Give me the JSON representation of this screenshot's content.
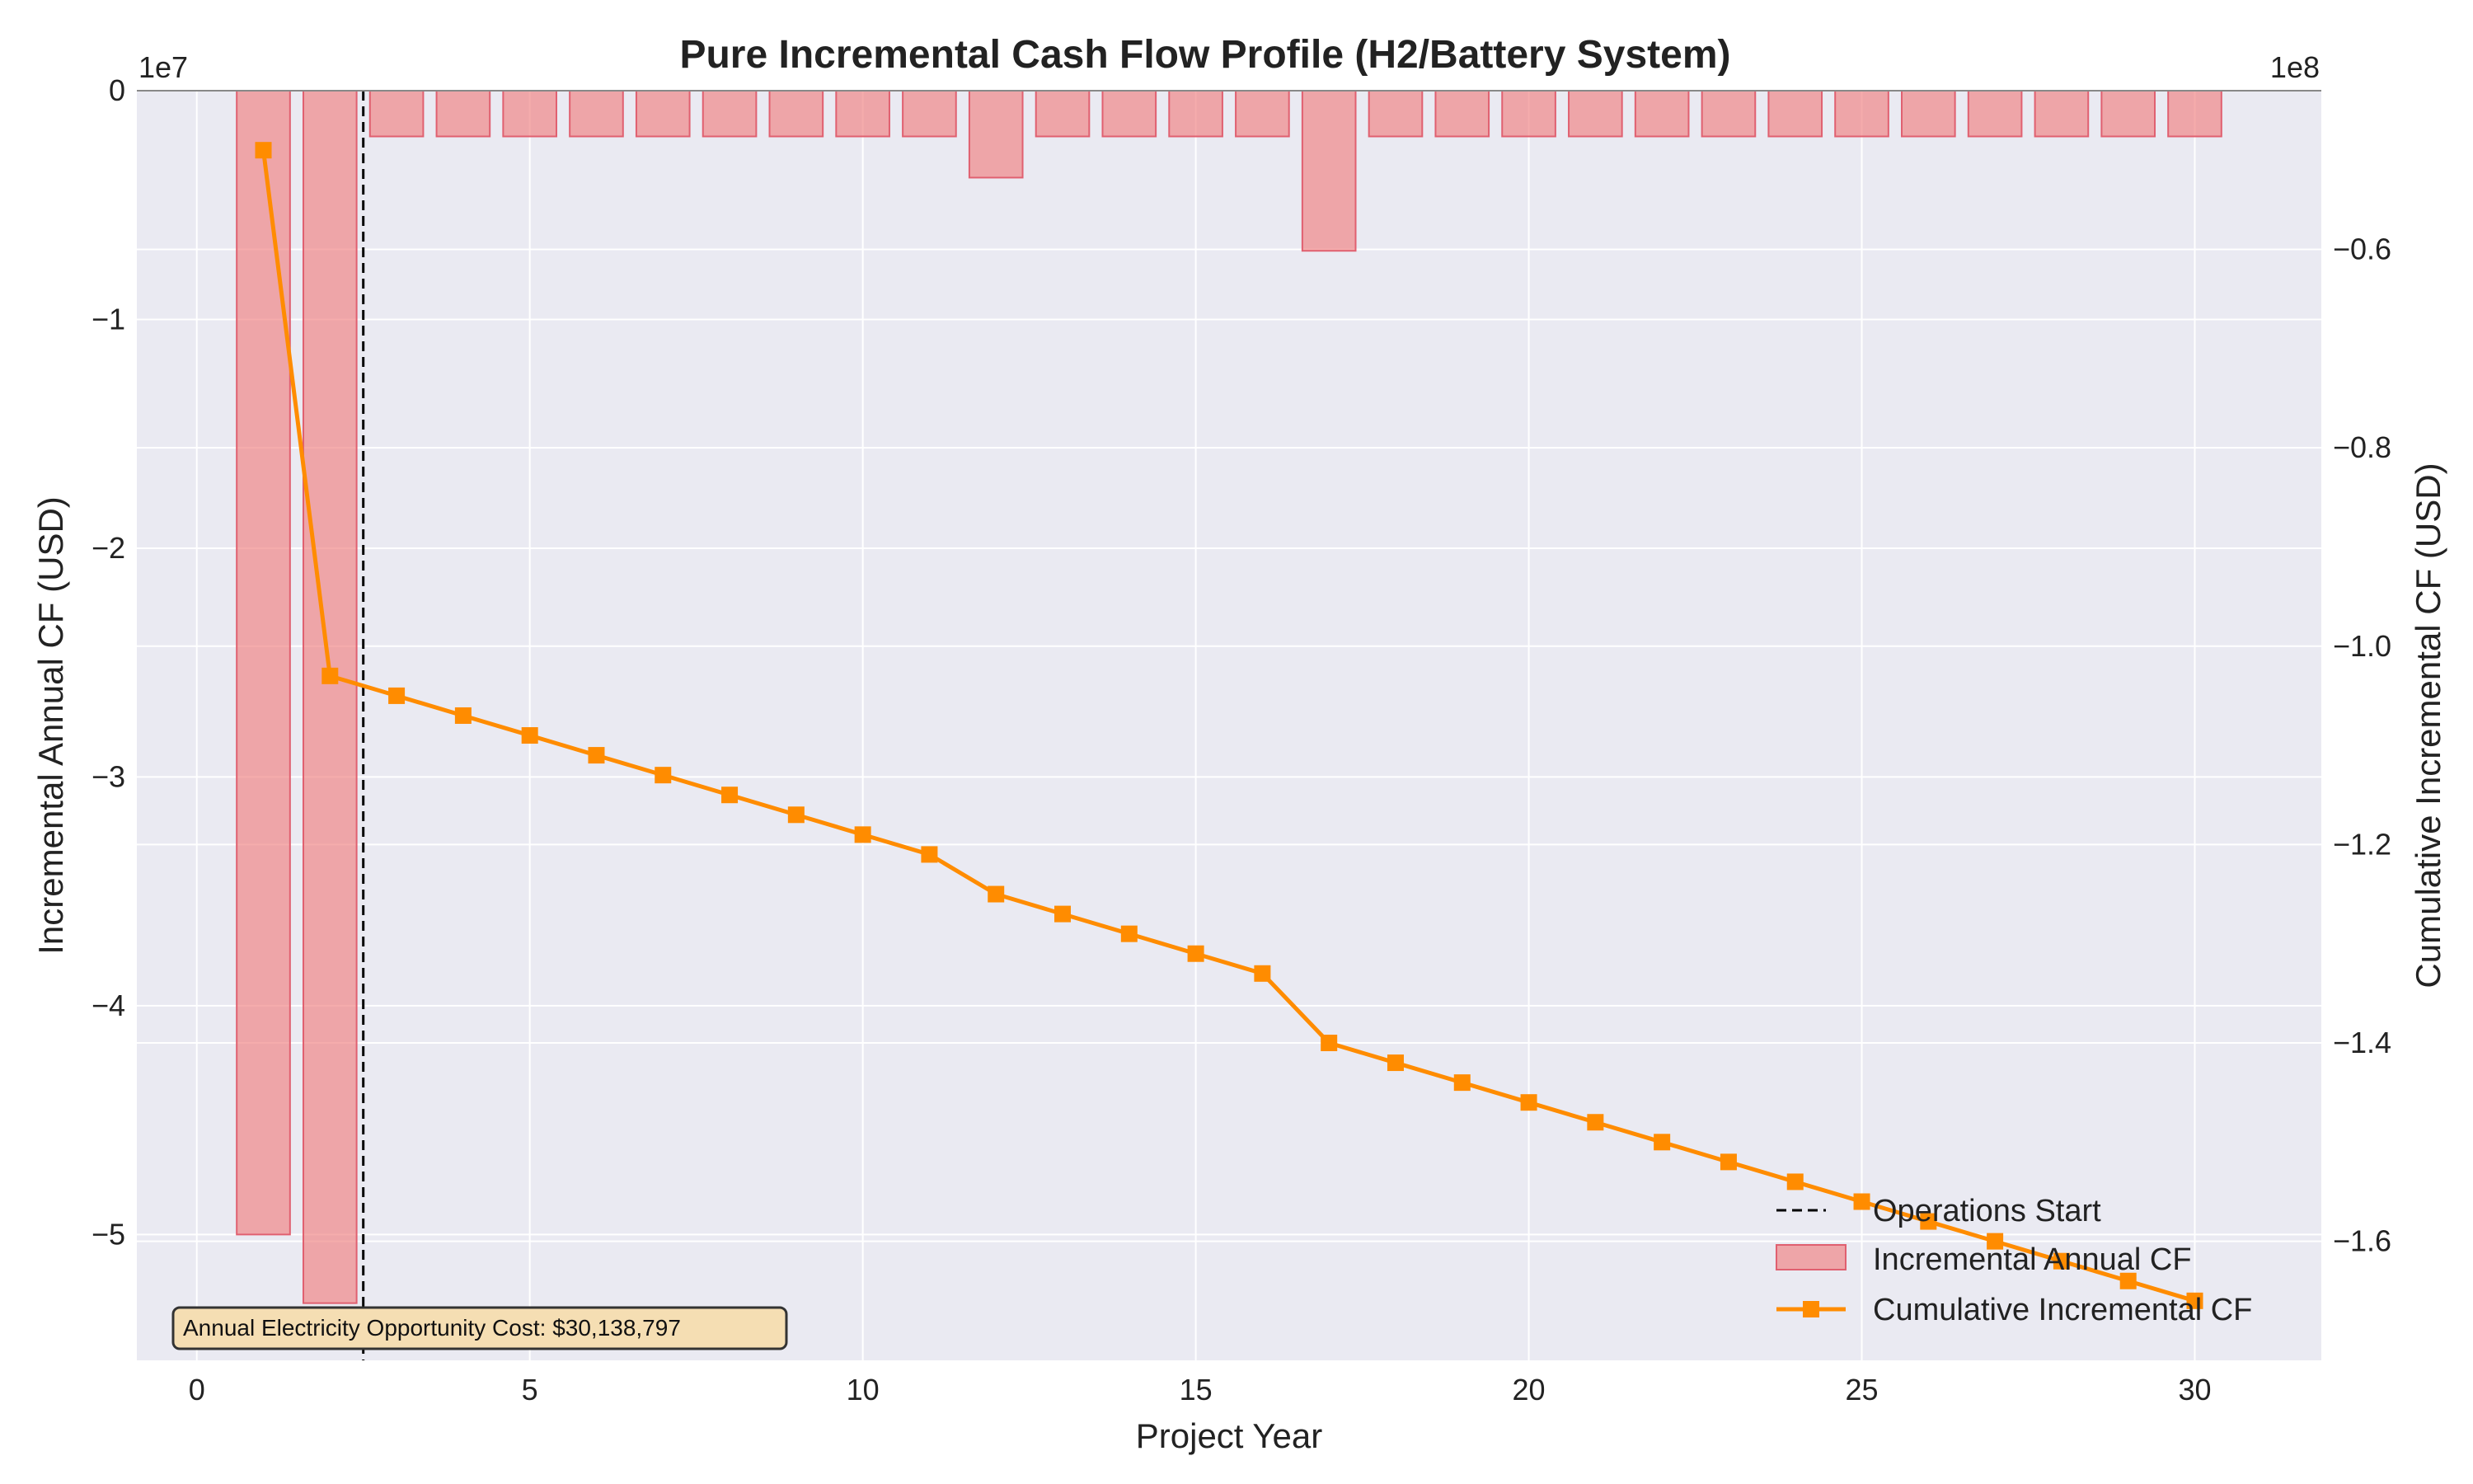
{
  "chart_data": {
    "type": "bar",
    "title": "Pure Incremental Cash Flow Profile (H2/Battery System)",
    "xlabel": "Project Year",
    "ylabel": "Incremental Annual CF (USD)",
    "ylabel_right": "Cumulative Incremental CF (USD)",
    "xlim": [
      -0.9,
      31.9
    ],
    "ylim": [
      -5.55,
      0
    ],
    "ylim_right": [
      -1.72,
      -0.44
    ],
    "x_ticks": [
      0,
      5,
      10,
      15,
      20,
      25,
      30
    ],
    "y_ticks": [
      0,
      -1,
      -2,
      -3,
      -4,
      -5
    ],
    "y_ticks_right": [
      -0.6,
      -0.8,
      -1.0,
      -1.2,
      -1.4,
      -1.6
    ],
    "y_ticks_label": [
      "0",
      "−1",
      "−2",
      "−3",
      "−4",
      "−5"
    ],
    "y_ticks_right_label": [
      "−0.6",
      "−0.8",
      "−1.0",
      "−1.2",
      "−1.4",
      "−1.6"
    ],
    "x_ticks_label": [
      "0",
      "5",
      "10",
      "15",
      "20",
      "25",
      "30"
    ],
    "offset_left": "1e7",
    "offset_right": "1e8",
    "grid": true,
    "legend_position": "lower right",
    "series": [
      {
        "name": "Incremental Annual CF",
        "type": "bar",
        "axis": "left",
        "color": "#f08080",
        "x": [
          1,
          2,
          3,
          4,
          5,
          6,
          7,
          8,
          9,
          10,
          11,
          12,
          13,
          14,
          15,
          16,
          17,
          18,
          19,
          20,
          21,
          22,
          23,
          24,
          25,
          26,
          27,
          28,
          29,
          30
        ],
        "values": [
          -5.0,
          -5.3,
          -0.2,
          -0.2,
          -0.2,
          -0.2,
          -0.2,
          -0.2,
          -0.2,
          -0.2,
          -0.2,
          -0.38,
          -0.2,
          -0.2,
          -0.2,
          -0.2,
          -0.7,
          -0.2,
          -0.2,
          -0.2,
          -0.2,
          -0.2,
          -0.2,
          -0.2,
          -0.2,
          -0.2,
          -0.2,
          -0.2,
          -0.2,
          -0.2
        ]
      },
      {
        "name": "Cumulative Incremental CF",
        "type": "line",
        "axis": "right",
        "color": "#ff8c00",
        "marker": "square",
        "x": [
          1,
          2,
          3,
          4,
          5,
          6,
          7,
          8,
          9,
          10,
          11,
          12,
          13,
          14,
          15,
          16,
          17,
          18,
          19,
          20,
          21,
          22,
          23,
          24,
          25,
          26,
          27,
          28,
          29,
          30
        ],
        "values": [
          -0.5,
          -1.03,
          -1.05,
          -1.07,
          -1.09,
          -1.11,
          -1.13,
          -1.15,
          -1.17,
          -1.19,
          -1.21,
          -1.25,
          -1.27,
          -1.29,
          -1.31,
          -1.33,
          -1.4,
          -1.42,
          -1.44,
          -1.46,
          -1.48,
          -1.5,
          -1.52,
          -1.54,
          -1.56,
          -1.58,
          -1.6,
          -1.62,
          -1.64,
          -1.66
        ]
      }
    ],
    "vline": {
      "x": 2.5,
      "label": "Operations Start",
      "style": "dashed",
      "color": "#000000"
    },
    "annotation": "Annual Electricity Opportunity Cost: $30,138,797",
    "colors": {
      "plot_background": "#eaeaf2",
      "grid": "#ffffff",
      "bar_fill": "#f08080",
      "line": "#ff8c00",
      "annotation_bg": "#f5deb3"
    }
  }
}
